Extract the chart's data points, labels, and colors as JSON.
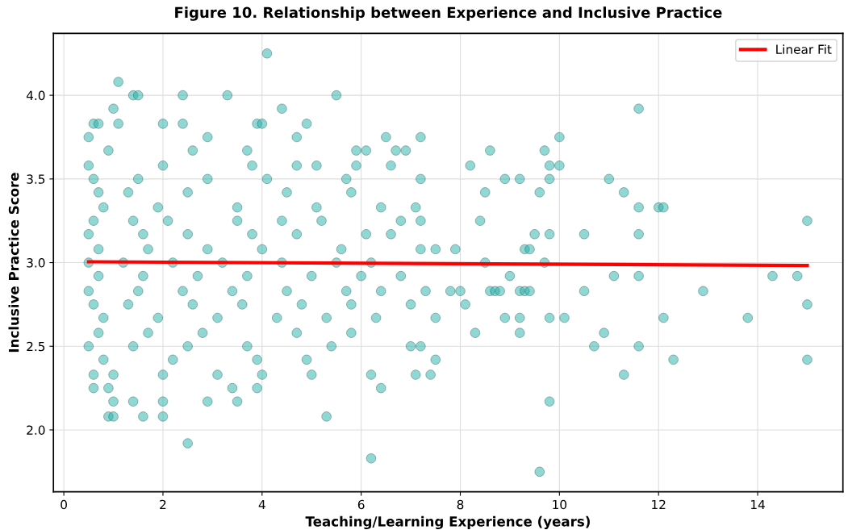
{
  "chart_data": {
    "type": "scatter",
    "title": "Figure 10. Relationship between Experience and Inclusive Practice",
    "xlabel": "Teaching/Learning Experience (years)",
    "ylabel": "Inclusive Practice Score",
    "xlim": [
      -0.21,
      15.72
    ],
    "ylim": [
      1.63,
      4.37
    ],
    "xticks": [
      0,
      2,
      4,
      6,
      8,
      10,
      12,
      14
    ],
    "yticks": [
      {
        "value": 2.0,
        "label": "2.0"
      },
      {
        "value": 2.5,
        "label": "2.5"
      },
      {
        "value": 3.0,
        "label": "3.0"
      },
      {
        "value": 3.5,
        "label": "3.5"
      },
      {
        "value": 4.0,
        "label": "4.0"
      }
    ],
    "grid": true,
    "legend": "top right",
    "series": [
      {
        "marker": "circle",
        "color": "#20b2aa",
        "x": [
          8.2,
          8.6,
          9.7,
          9.8,
          10,
          10,
          11.6,
          8.9,
          9.2,
          9.8,
          11,
          8.5,
          9.6,
          11.3,
          11.6,
          12,
          12.1,
          8.4,
          15,
          9.5,
          9.8,
          10.5,
          11.6,
          7.9,
          9.3,
          9.4,
          8.5,
          9.7,
          9.0,
          11.1,
          11.6,
          14.3,
          14.8,
          7.8,
          8.0,
          8.6,
          8.7,
          8.8,
          9.2,
          9.3,
          9.4,
          10.5,
          12.9,
          8.1,
          15,
          8.9,
          9.2,
          9.8,
          10.1,
          12.1,
          13.8,
          8.3,
          9.2,
          10.9,
          10.7,
          11.6,
          12.3,
          15,
          11.3,
          9.8,
          9.6,
          4.1,
          1.1,
          1.4,
          1.5,
          2.4,
          3.3,
          5.5,
          1.0,
          4.4,
          0.6,
          0.7,
          1.1,
          2.0,
          2.4,
          3.9,
          4.0,
          4.9,
          0.5,
          2.9,
          4.7,
          6.5,
          7.2,
          0.9,
          2.6,
          3.7,
          5.9,
          6.1,
          6.7,
          6.9,
          0.5,
          2.0,
          3.8,
          4.7,
          5.1,
          5.9,
          6.6,
          0.6,
          1.5,
          2.9,
          4.1,
          5.7,
          7.2,
          0.7,
          1.3,
          2.5,
          4.5,
          5.8,
          0.8,
          1.9,
          3.5,
          5.1,
          6.4,
          7.1,
          0.6,
          1.4,
          2.1,
          3.5,
          4.4,
          5.2,
          6.8,
          7.2,
          0.5,
          1.6,
          2.5,
          3.8,
          4.7,
          6.1,
          6.6,
          0.7,
          1.7,
          2.9,
          4.0,
          5.6,
          7.2,
          7.5,
          0.5,
          1.2,
          2.2,
          3.2,
          4.4,
          5.5,
          6.2,
          0.7,
          1.6,
          2.7,
          3.7,
          5.0,
          6.0,
          6.8,
          0.5,
          1.5,
          2.4,
          3.4,
          4.5,
          5.7,
          6.4,
          7.3,
          0.6,
          1.3,
          2.6,
          3.6,
          4.8,
          5.8,
          7.0,
          0.8,
          1.9,
          3.1,
          4.3,
          5.3,
          6.3,
          7.5,
          0.7,
          1.7,
          2.8,
          4.7,
          5.8,
          0.5,
          1.4,
          2.5,
          3.7,
          5.4,
          7.0,
          7.2,
          0.8,
          2.2,
          3.9,
          4.9,
          7.5,
          0.6,
          1.0,
          2.0,
          3.1,
          4.0,
          5.0,
          6.2,
          7.1,
          7.4,
          0.6,
          0.9,
          3.4,
          3.9,
          6.4,
          1.0,
          1.4,
          2.0,
          2.9,
          3.5,
          0.9,
          1.0,
          1.6,
          2.0,
          5.3,
          2.5,
          6.2
        ],
        "values": [
          3.58,
          3.67,
          3.67,
          3.58,
          3.58,
          3.75,
          3.92,
          3.5,
          3.5,
          3.5,
          3.5,
          3.42,
          3.42,
          3.42,
          3.33,
          3.33,
          3.33,
          3.25,
          3.25,
          3.17,
          3.17,
          3.17,
          3.17,
          3.08,
          3.08,
          3.08,
          3.0,
          3.0,
          2.92,
          2.92,
          2.92,
          2.92,
          2.92,
          2.83,
          2.83,
          2.83,
          2.83,
          2.83,
          2.83,
          2.83,
          2.83,
          2.83,
          2.83,
          2.75,
          2.75,
          2.67,
          2.67,
          2.67,
          2.67,
          2.67,
          2.67,
          2.58,
          2.58,
          2.58,
          2.5,
          2.5,
          2.42,
          2.42,
          2.33,
          2.17,
          1.75,
          4.25,
          4.08,
          4.0,
          4.0,
          4.0,
          4.0,
          4.0,
          3.92,
          3.92,
          3.83,
          3.83,
          3.83,
          3.83,
          3.83,
          3.83,
          3.83,
          3.83,
          3.75,
          3.75,
          3.75,
          3.75,
          3.75,
          3.67,
          3.67,
          3.67,
          3.67,
          3.67,
          3.67,
          3.67,
          3.58,
          3.58,
          3.58,
          3.58,
          3.58,
          3.58,
          3.58,
          3.5,
          3.5,
          3.5,
          3.5,
          3.5,
          3.5,
          3.42,
          3.42,
          3.42,
          3.42,
          3.42,
          3.33,
          3.33,
          3.33,
          3.33,
          3.33,
          3.33,
          3.25,
          3.25,
          3.25,
          3.25,
          3.25,
          3.25,
          3.25,
          3.25,
          3.17,
          3.17,
          3.17,
          3.17,
          3.17,
          3.17,
          3.17,
          3.08,
          3.08,
          3.08,
          3.08,
          3.08,
          3.08,
          3.08,
          3.0,
          3.0,
          3.0,
          3.0,
          3.0,
          3.0,
          3.0,
          2.92,
          2.92,
          2.92,
          2.92,
          2.92,
          2.92,
          2.92,
          2.83,
          2.83,
          2.83,
          2.83,
          2.83,
          2.83,
          2.83,
          2.83,
          2.75,
          2.75,
          2.75,
          2.75,
          2.75,
          2.75,
          2.75,
          2.67,
          2.67,
          2.67,
          2.67,
          2.67,
          2.67,
          2.67,
          2.58,
          2.58,
          2.58,
          2.58,
          2.58,
          2.5,
          2.5,
          2.5,
          2.5,
          2.5,
          2.5,
          2.5,
          2.42,
          2.42,
          2.42,
          2.42,
          2.42,
          2.33,
          2.33,
          2.33,
          2.33,
          2.33,
          2.33,
          2.33,
          2.33,
          2.33,
          2.25,
          2.25,
          2.25,
          2.25,
          2.25,
          2.17,
          2.17,
          2.17,
          2.17,
          2.17,
          2.08,
          2.08,
          2.08,
          2.08,
          2.08,
          1.92,
          1.83
        ]
      },
      {
        "type": "line",
        "name": "Linear Fit",
        "color": "#ff0000",
        "line_style": "solid",
        "x": [
          0.5,
          15
        ],
        "values": [
          3.005,
          2.983
        ]
      }
    ]
  }
}
